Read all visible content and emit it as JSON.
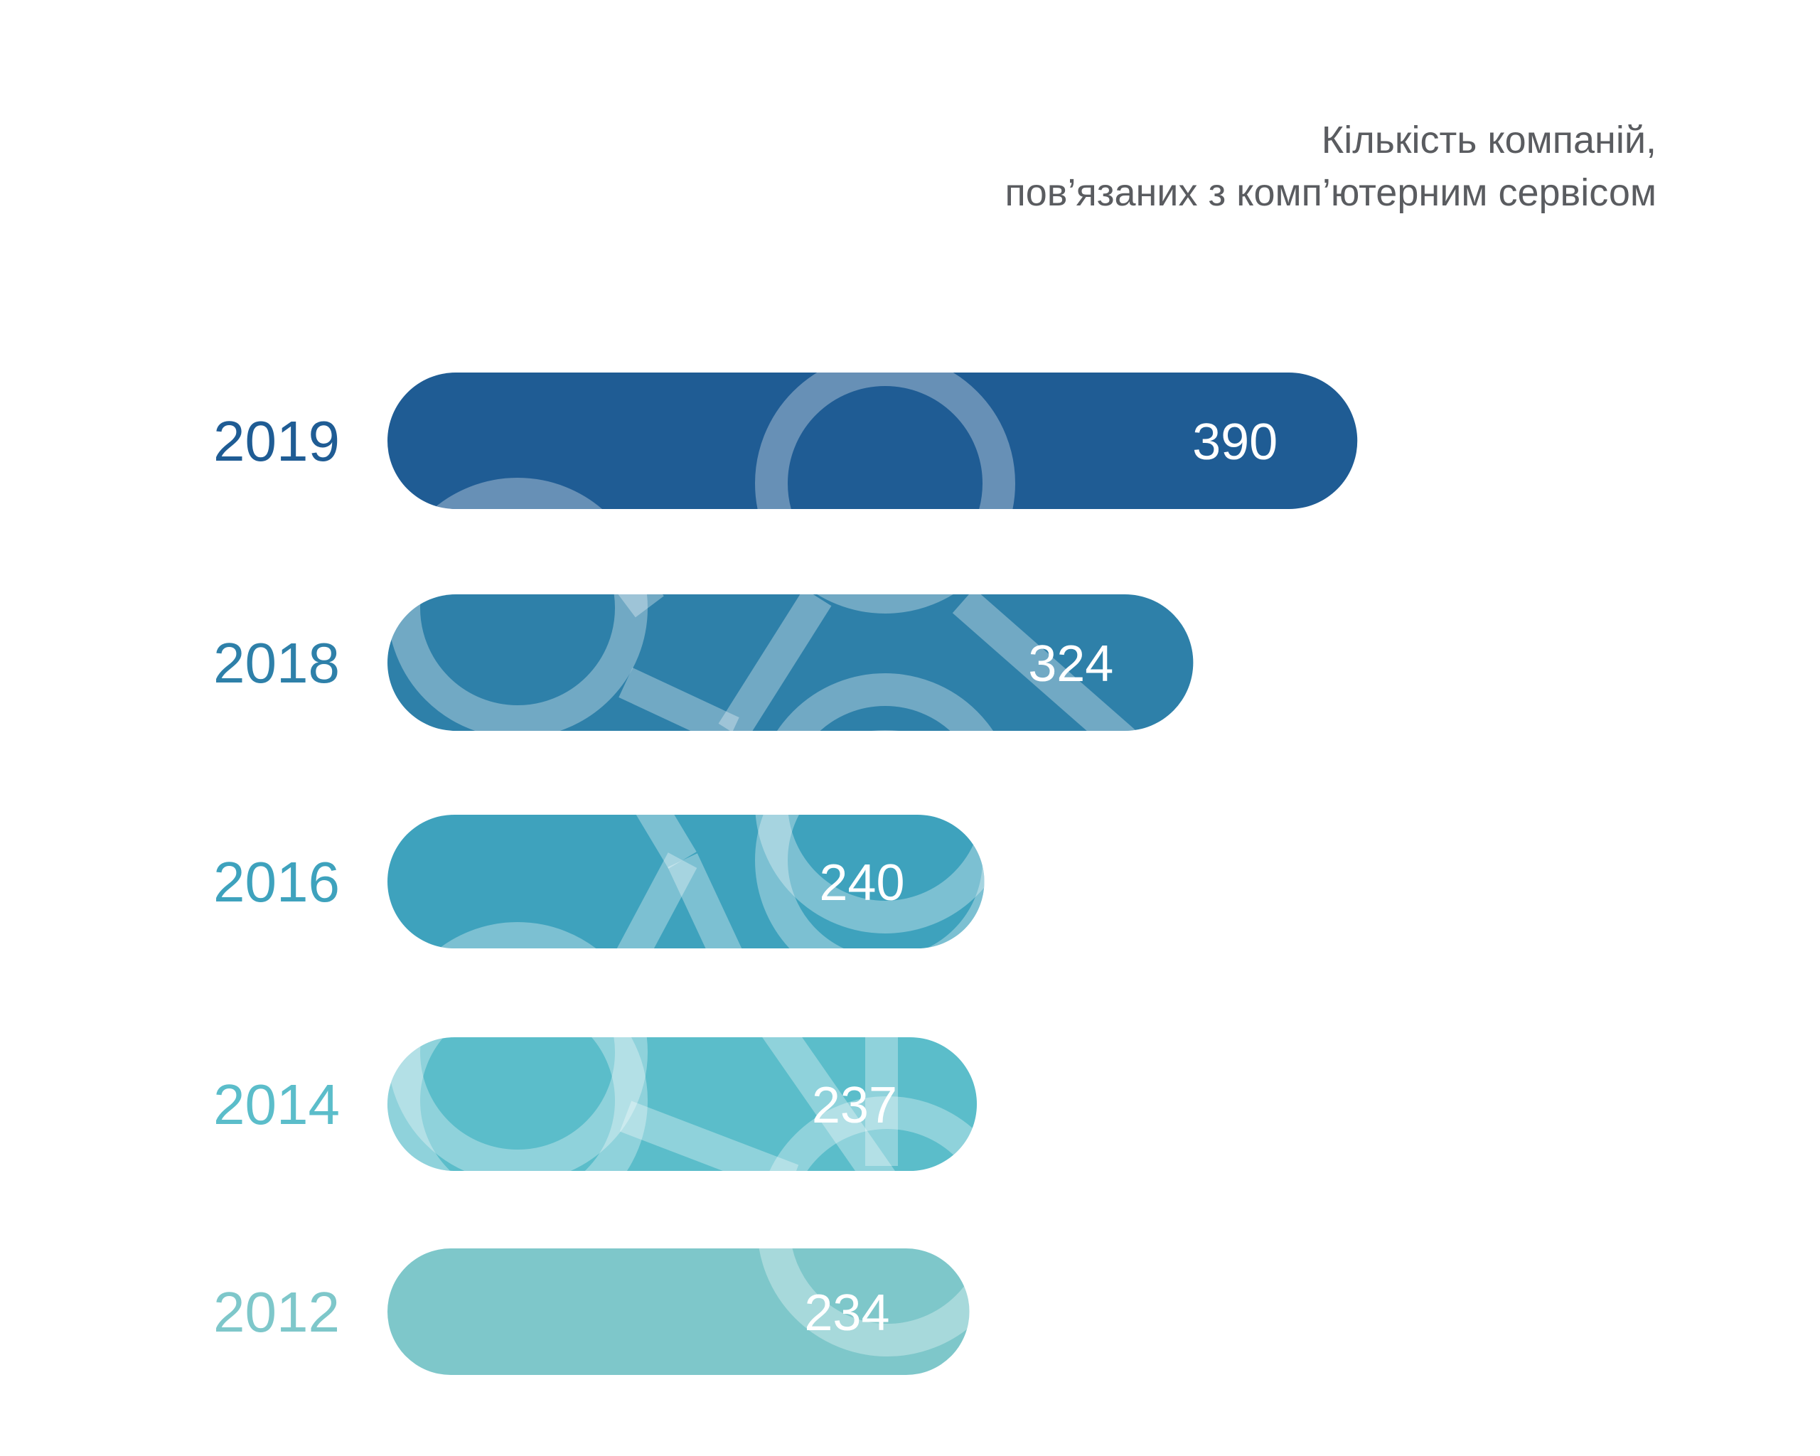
{
  "chart_data": {
    "type": "bar",
    "orientation": "horizontal",
    "title": [
      "Кількість компаній,",
      "пов’язаних з комп’ютерним сервісом"
    ],
    "categories": [
      "2019",
      "2018",
      "2016",
      "2014",
      "2012"
    ],
    "values": [
      390,
      324,
      240,
      237,
      234
    ],
    "value_labels": [
      "390",
      "324",
      "240",
      "237",
      "234"
    ],
    "colors": [
      "#1f5c94",
      "#2e80a9",
      "#3ea2bd",
      "#5bbdca",
      "#7ec7ca"
    ],
    "grid": false,
    "legend": "none"
  }
}
